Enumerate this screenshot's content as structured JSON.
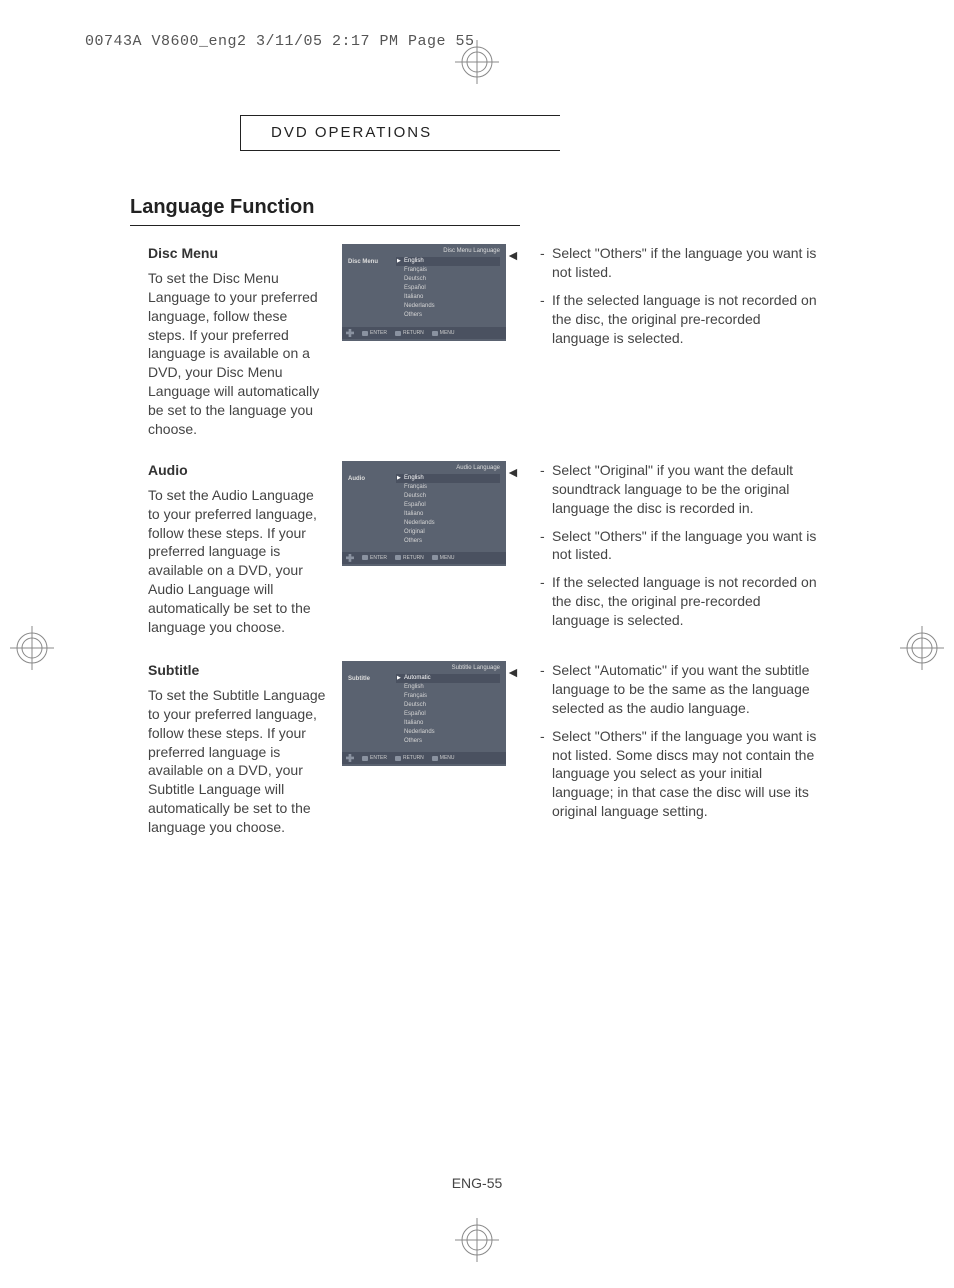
{
  "header": "00743A V8600_eng2  3/11/05  2:17 PM  Page 55",
  "section_label": "DVD OPERATIONS",
  "main_title": "Language Function",
  "page_number": "ENG-55",
  "menu_foot": {
    "enter": "ENTER",
    "return": "RETURN",
    "menu": "MENU"
  },
  "sections": [
    {
      "title": "Disc Menu",
      "body": "To set the Disc Menu Language to your preferred language, follow these steps. If your preferred language is available on a DVD, your Disc Menu Language will automatically be set to the language you choose.",
      "menu": {
        "title": "Disc Menu Language",
        "label": "Disc Menu",
        "items": [
          "English",
          "Français",
          "Deutsch",
          "Español",
          "Italiano",
          "Nederlands",
          "Others"
        ],
        "selected": 0
      },
      "tips": [
        "Select \"Others\" if the language you want is not listed.",
        "If the selected language is not recorded on the disc, the original pre-recorded language is selected."
      ]
    },
    {
      "title": "Audio",
      "body": "To set the Audio Language to your preferred language, follow these steps. If your preferred language is available on a DVD, your Audio Language will automatically be set to the language you choose.",
      "menu": {
        "title": "Audio Language",
        "label": "Audio",
        "items": [
          "English",
          "Français",
          "Deutsch",
          "Español",
          "Italiano",
          "Nederlands",
          "Original",
          "Others"
        ],
        "selected": 0
      },
      "tips": [
        "Select \"Original\" if you want the default soundtrack language to be the original language the disc is recorded in.",
        "Select \"Others\" if the language you want is not listed.",
        "If the selected language is not recorded on the disc, the original pre-recorded language is selected."
      ]
    },
    {
      "title": "Subtitle",
      "body": "To set the Subtitle Language to your preferred language, follow these steps. If your preferred language is available on a DVD, your Subtitle Language will automatically be set to the language you choose.",
      "menu": {
        "title": "Subtitle Language",
        "label": "Subtitle",
        "items": [
          "Automatic",
          "English",
          "Français",
          "Deutsch",
          "Español",
          "Italiano",
          "Nederlands",
          "Others"
        ],
        "selected": 0
      },
      "tips": [
        "Select \"Automatic\" if you want the subtitle language to be the same as the language selected as the audio language.",
        "Select \"Others\" if the language you want is not listed. Some discs may not contain the language you select as your initial language; in that case the disc will use its original language setting."
      ]
    }
  ],
  "colors": {
    "menu_bg": "#5a6270",
    "menu_foot_bg": "#4a5160",
    "text": "#444444",
    "border": "#222222"
  }
}
